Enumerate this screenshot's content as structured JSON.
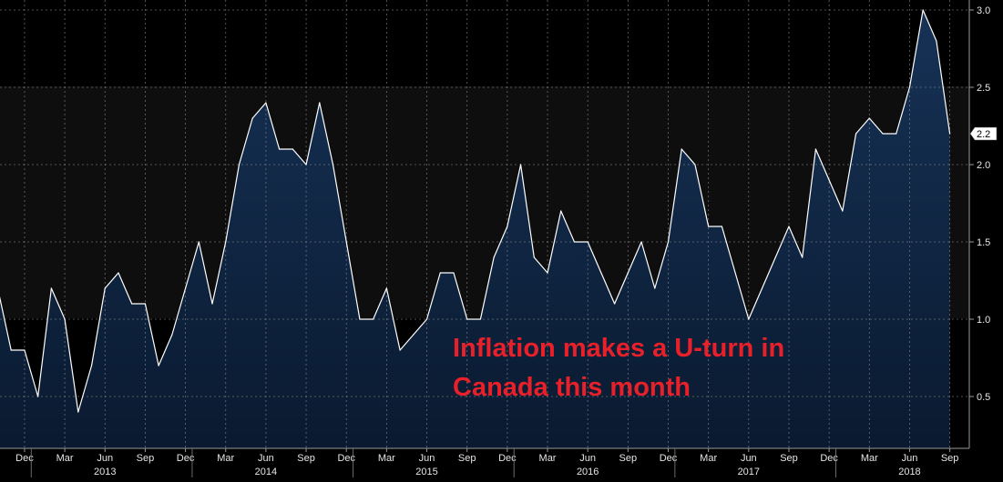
{
  "chart_data": {
    "type": "area",
    "title": "",
    "xlabel": "",
    "ylabel": "",
    "ylim": [
      0.2,
      3.0
    ],
    "y_ticks": [
      0.5,
      1.0,
      1.5,
      2.0,
      2.5,
      3.0
    ],
    "y_tick_labels": [
      "0.5",
      "1.0",
      "1.5",
      "2.0",
      "2.5",
      "3.0"
    ],
    "grid": true,
    "y_axis_position": "right",
    "x_month_ticks": [
      {
        "month": "2012-12",
        "label": "Dec"
      },
      {
        "month": "2013-03",
        "label": "Mar"
      },
      {
        "month": "2013-06",
        "label": "Jun"
      },
      {
        "month": "2013-09",
        "label": "Sep"
      },
      {
        "month": "2013-12",
        "label": "Dec"
      },
      {
        "month": "2014-03",
        "label": "Mar"
      },
      {
        "month": "2014-06",
        "label": "Jun"
      },
      {
        "month": "2014-09",
        "label": "Sep"
      },
      {
        "month": "2014-12",
        "label": "Dec"
      },
      {
        "month": "2015-03",
        "label": "Mar"
      },
      {
        "month": "2015-06",
        "label": "Jun"
      },
      {
        "month": "2015-09",
        "label": "Sep"
      },
      {
        "month": "2015-12",
        "label": "Dec"
      },
      {
        "month": "2016-03",
        "label": "Mar"
      },
      {
        "month": "2016-06",
        "label": "Jun"
      },
      {
        "month": "2016-09",
        "label": "Sep"
      },
      {
        "month": "2016-12",
        "label": "Dec"
      },
      {
        "month": "2017-03",
        "label": "Mar"
      },
      {
        "month": "2017-06",
        "label": "Jun"
      },
      {
        "month": "2017-09",
        "label": "Sep"
      },
      {
        "month": "2017-12",
        "label": "Dec"
      },
      {
        "month": "2018-03",
        "label": "Mar"
      },
      {
        "month": "2018-06",
        "label": "Jun"
      },
      {
        "month": "2018-09",
        "label": "Sep"
      }
    ],
    "x_year_labels": [
      {
        "month": "2013-06",
        "label": "2013"
      },
      {
        "month": "2014-06",
        "label": "2014"
      },
      {
        "month": "2015-06",
        "label": "2015"
      },
      {
        "month": "2016-06",
        "label": "2016"
      },
      {
        "month": "2017-06",
        "label": "2017"
      },
      {
        "month": "2018-06",
        "label": "2018"
      }
    ],
    "x": [
      "2012-10",
      "2012-11",
      "2012-12",
      "2013-01",
      "2013-02",
      "2013-03",
      "2013-04",
      "2013-05",
      "2013-06",
      "2013-07",
      "2013-08",
      "2013-09",
      "2013-10",
      "2013-11",
      "2013-12",
      "2014-01",
      "2014-02",
      "2014-03",
      "2014-04",
      "2014-05",
      "2014-06",
      "2014-07",
      "2014-08",
      "2014-09",
      "2014-10",
      "2014-11",
      "2014-12",
      "2015-01",
      "2015-02",
      "2015-03",
      "2015-04",
      "2015-05",
      "2015-06",
      "2015-07",
      "2015-08",
      "2015-09",
      "2015-10",
      "2015-11",
      "2015-12",
      "2016-01",
      "2016-02",
      "2016-03",
      "2016-04",
      "2016-05",
      "2016-06",
      "2016-07",
      "2016-08",
      "2016-09",
      "2016-10",
      "2016-11",
      "2016-12",
      "2017-01",
      "2017-02",
      "2017-03",
      "2017-04",
      "2017-05",
      "2017-06",
      "2017-07",
      "2017-08",
      "2017-09",
      "2017-10",
      "2017-11",
      "2017-12",
      "2018-01",
      "2018-02",
      "2018-03",
      "2018-04",
      "2018-05",
      "2018-06",
      "2018-07",
      "2018-08",
      "2018-09"
    ],
    "series": [
      {
        "values": [
          1.2,
          0.8,
          0.8,
          0.5,
          1.2,
          1.0,
          0.4,
          0.7,
          1.2,
          1.3,
          1.1,
          1.1,
          0.7,
          0.9,
          1.2,
          1.5,
          1.1,
          1.5,
          2.0,
          2.3,
          2.4,
          2.1,
          2.1,
          2.0,
          2.4,
          2.0,
          1.5,
          1.0,
          1.0,
          1.2,
          0.8,
          0.9,
          1.0,
          1.3,
          1.3,
          1.0,
          1.0,
          1.4,
          1.6,
          2.0,
          1.4,
          1.3,
          1.7,
          1.5,
          1.5,
          1.3,
          1.1,
          1.3,
          1.5,
          1.2,
          1.5,
          2.1,
          2.0,
          1.6,
          1.6,
          1.3,
          1.0,
          1.2,
          1.4,
          1.6,
          1.4,
          2.1,
          1.9,
          1.7,
          2.2,
          2.3,
          2.2,
          2.2,
          2.5,
          3.0,
          2.8,
          2.2
        ]
      }
    ],
    "last_value_label": "2.2",
    "annotations": [
      {
        "lines": [
          "Inflation makes a U-turn in",
          "Canada this month"
        ]
      }
    ],
    "colors": {
      "background_top": "#000000",
      "background_band": "#111111",
      "area_fill_top": "#163256",
      "area_fill_bottom": "#0a1a30",
      "line": "#ffffff",
      "grid": "#8a8a8a",
      "text": "#e6e6e6",
      "annotation": "#e8202a",
      "last_label_bg": "#ffffff"
    }
  }
}
